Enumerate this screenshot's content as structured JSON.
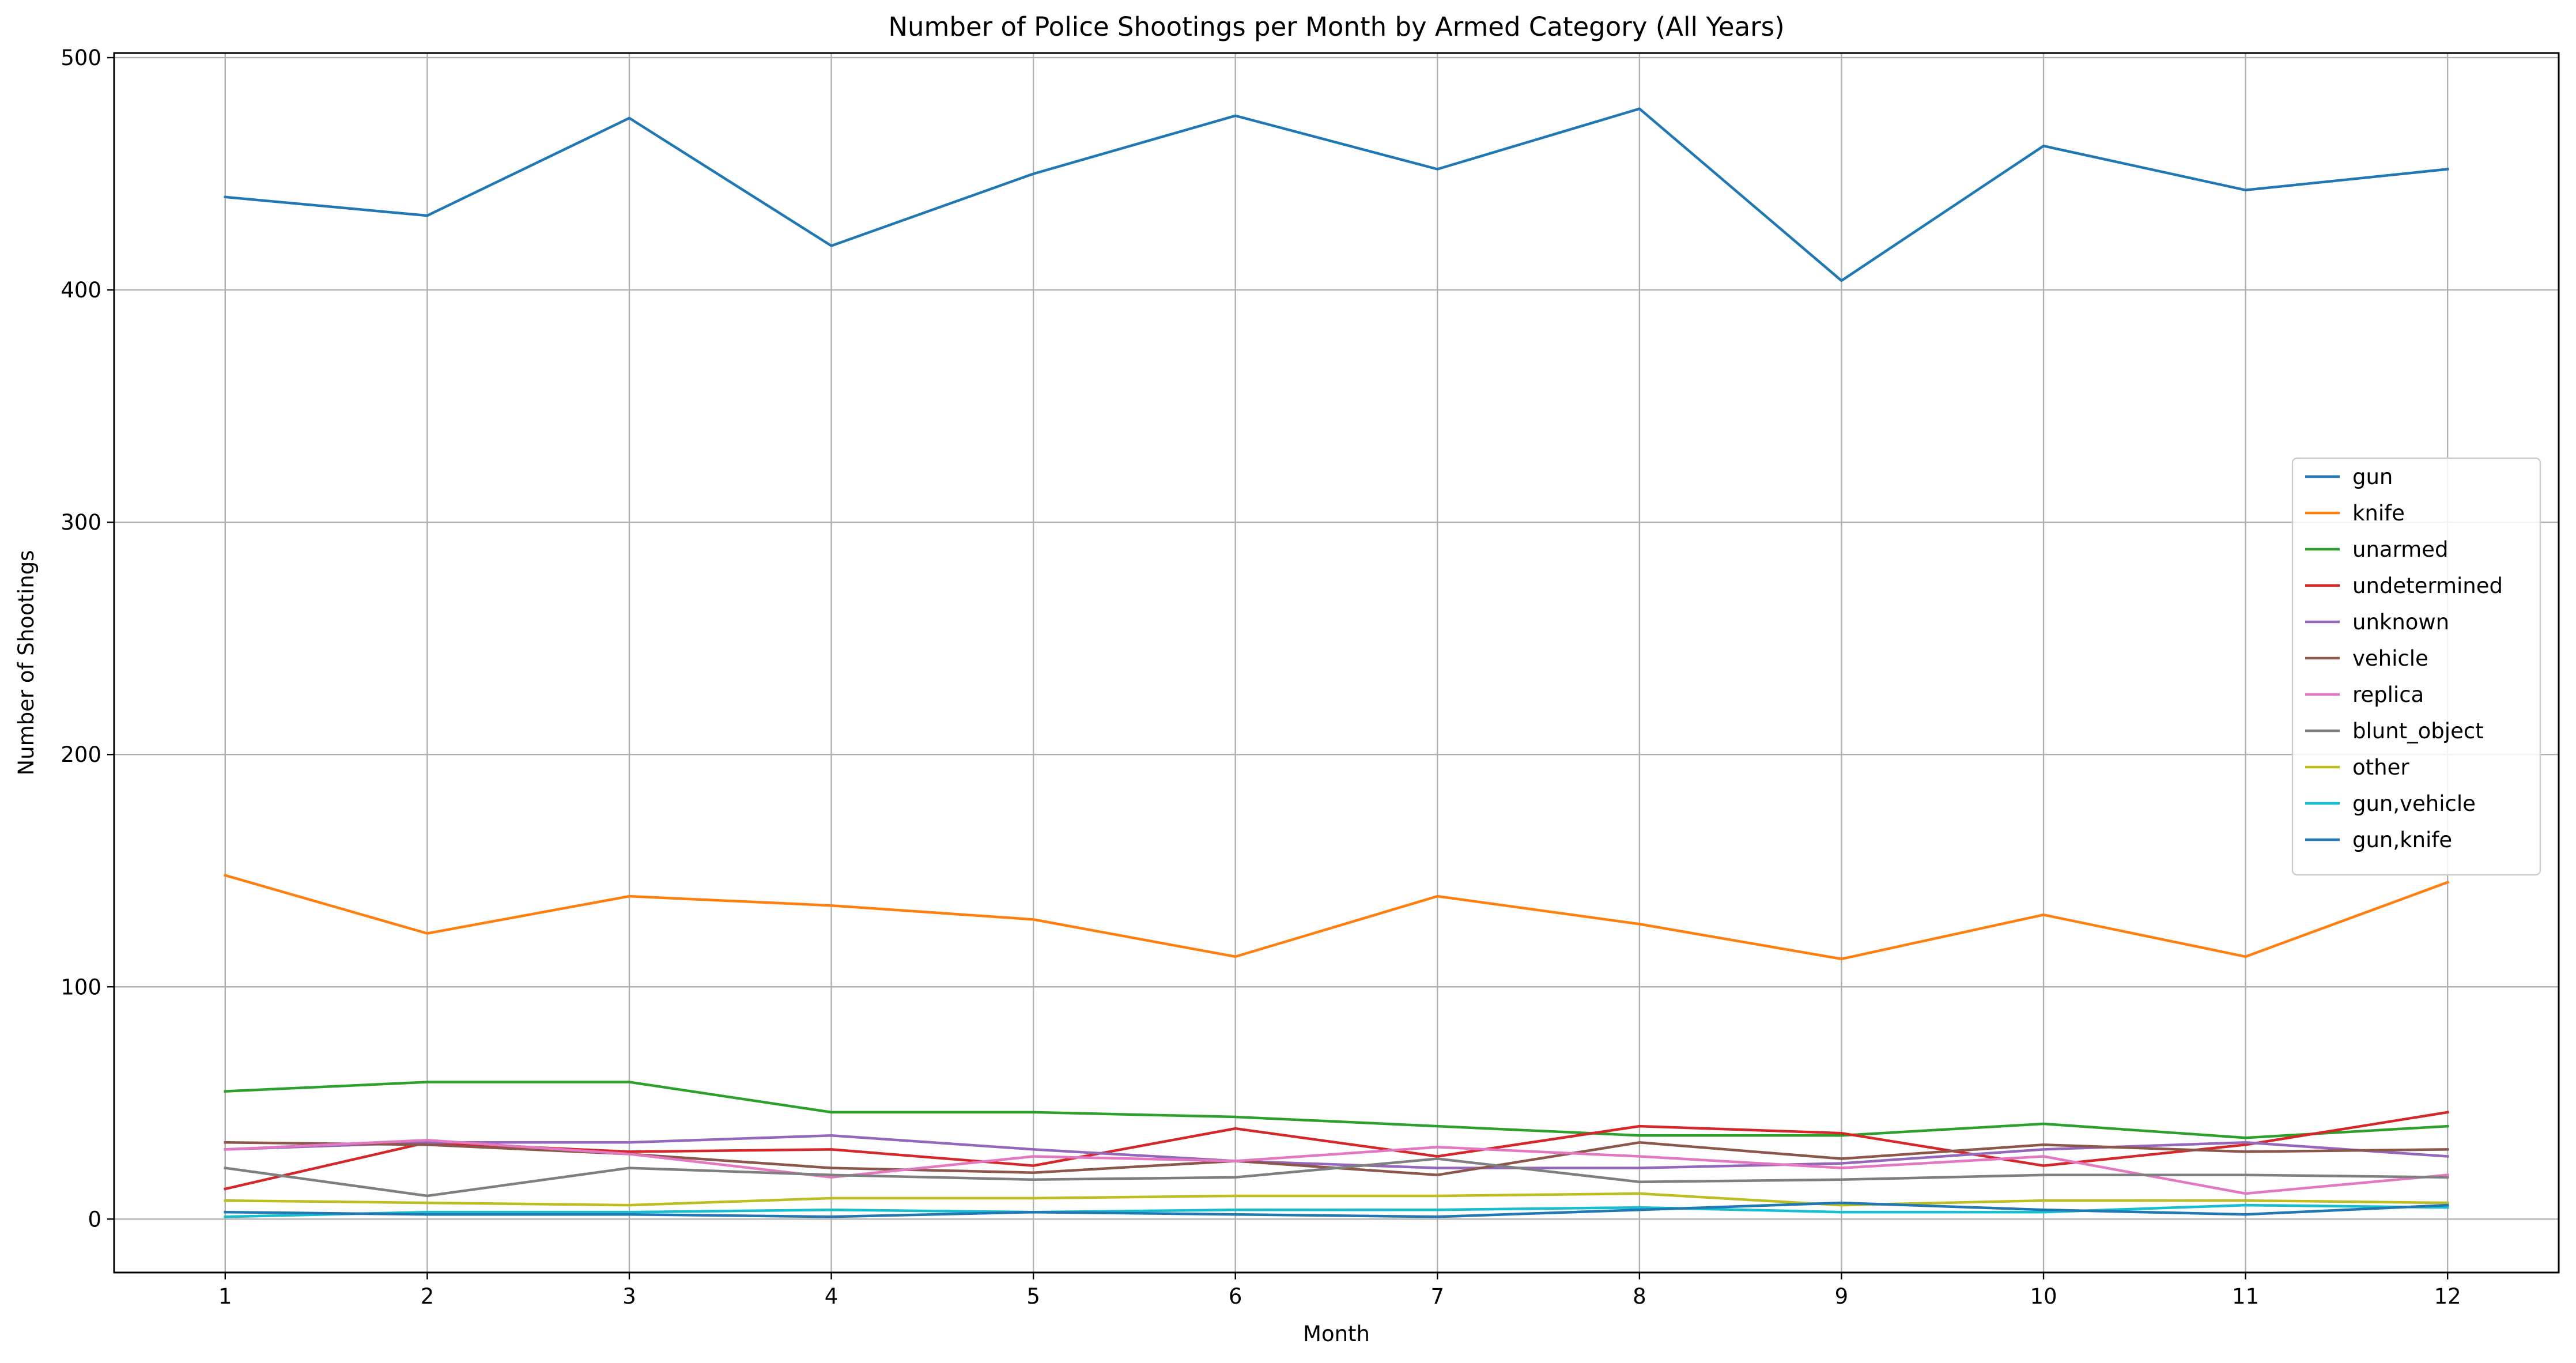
{
  "chart_data": {
    "type": "line",
    "title": "Number of Police Shootings per Month by Armed Category (All Years)",
    "xlabel": "Month",
    "ylabel": "Number of Shootings",
    "x": [
      1,
      2,
      3,
      4,
      5,
      6,
      7,
      8,
      9,
      10,
      11,
      12
    ],
    "xlim": [
      0.45,
      12.55
    ],
    "ylim": [
      -23,
      502
    ],
    "xticks": [
      1,
      2,
      3,
      4,
      5,
      6,
      7,
      8,
      9,
      10,
      11,
      12
    ],
    "yticks": [
      0,
      100,
      200,
      300,
      400,
      500
    ],
    "grid": true,
    "legend_position": "center-right",
    "series": [
      {
        "name": "gun",
        "color": "#1f77b4",
        "values": [
          440,
          432,
          474,
          419,
          450,
          475,
          452,
          478,
          404,
          462,
          443,
          452
        ]
      },
      {
        "name": "knife",
        "color": "#ff7f0e",
        "values": [
          148,
          123,
          139,
          135,
          129,
          113,
          139,
          127,
          112,
          131,
          113,
          145
        ]
      },
      {
        "name": "unarmed",
        "color": "#2ca02c",
        "values": [
          55,
          59,
          59,
          46,
          46,
          44,
          40,
          36,
          36,
          41,
          35,
          40
        ]
      },
      {
        "name": "undetermined",
        "color": "#d62728",
        "values": [
          13,
          33,
          29,
          30,
          23,
          39,
          27,
          40,
          37,
          23,
          32,
          46
        ]
      },
      {
        "name": "unknown",
        "color": "#9467bd",
        "values": [
          30,
          33,
          33,
          36,
          30,
          25,
          22,
          22,
          24,
          30,
          33,
          27
        ]
      },
      {
        "name": "vehicle",
        "color": "#8c564b",
        "values": [
          33,
          32,
          28,
          22,
          20,
          25,
          19,
          33,
          26,
          32,
          29,
          30
        ]
      },
      {
        "name": "replica",
        "color": "#e377c2",
        "values": [
          30,
          34,
          28,
          18,
          27,
          25,
          31,
          27,
          22,
          27,
          11,
          19
        ]
      },
      {
        "name": "blunt_object",
        "color": "#7f7f7f",
        "values": [
          22,
          10,
          22,
          19,
          17,
          18,
          26,
          16,
          17,
          19,
          19,
          18
        ]
      },
      {
        "name": "other",
        "color": "#bcbd22",
        "values": [
          8,
          7,
          6,
          9,
          9,
          10,
          10,
          11,
          6,
          8,
          8,
          7
        ]
      },
      {
        "name": "gun,vehicle",
        "color": "#17becf",
        "values": [
          1,
          3,
          3,
          4,
          3,
          4,
          4,
          5,
          3,
          3,
          6,
          5
        ]
      },
      {
        "name": "gun,knife",
        "color": "#1f77b4",
        "values": [
          3,
          2,
          2,
          1,
          3,
          2,
          1,
          4,
          7,
          4,
          2,
          6
        ]
      }
    ]
  }
}
